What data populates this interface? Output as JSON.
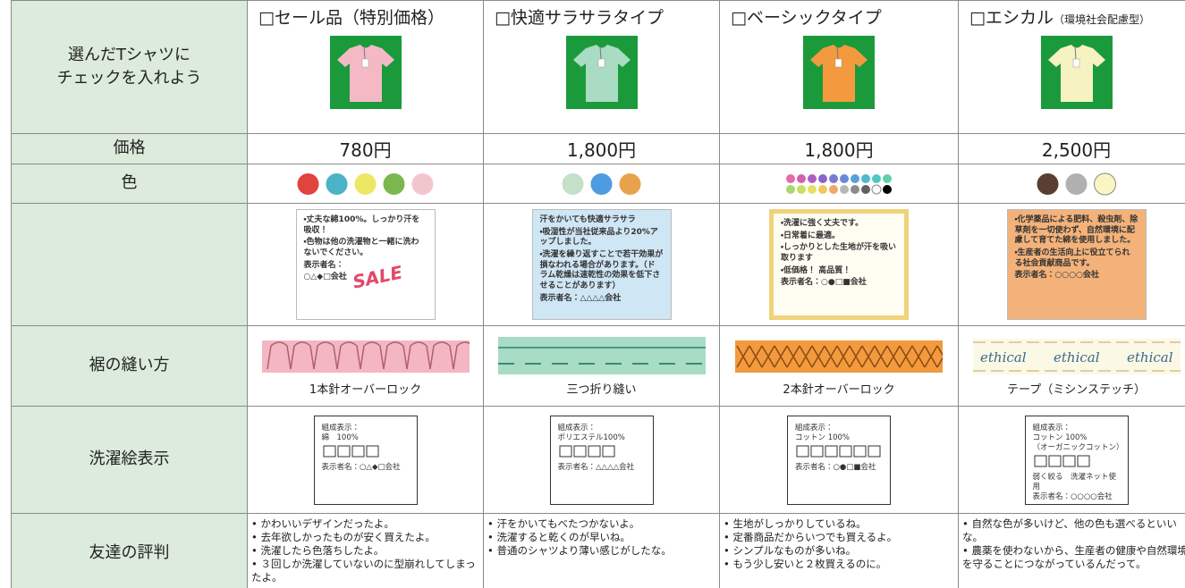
{
  "labels": {
    "select": "選んだTシャツに\nチェックを入れよう",
    "price": "価格",
    "color": "色",
    "hem": "裾の縫い方",
    "wash": "洗濯絵表示",
    "review": "友達の評判"
  },
  "products": [
    {
      "name": "□セール品（特別価格）",
      "shirt_color": "#f5b9c6",
      "price": "780円",
      "colors": [
        "#e0443f",
        "#4ab3c8",
        "#ece866",
        "#7ab84f",
        "#f3c6cc"
      ],
      "tag_color": "#ffffff",
      "tag": [
        "・丈夫な綿100%。しっかり汗を吸収！",
        "・色物は他の洗濯物と一緒に洗わないでください。",
        "表示者名：",
        "○△◆□会社"
      ],
      "stamp": "SALE",
      "hem": "1本針オーバーロック",
      "wash": [
        "組成表示：",
        "綿　100%",
        "表示者名：○△◆□会社"
      ],
      "review": [
        "• かわいいデザインだったよ。",
        "• 去年欲しかったものが安く買えたよ。",
        "• 洗濯したら色落ちしたよ。",
        "• ３回しか洗濯していないのに型崩れしてしまったよ。"
      ]
    },
    {
      "name": "□快適サラサラタイプ",
      "shirt_color": "#a9dcc2",
      "price": "1,800円",
      "colors": [
        "#c5e0c8",
        "#4f9be0",
        "#e8a24e"
      ],
      "tag_color": "#cfe6f5",
      "tag": [
        "汗をかいても快適サラサラ",
        "・吸湿性が当社従来品より20%アップしました。",
        "・洗濯を繰り返すことで若干効果が損なわれる場合があります。（ドラム乾燥は速乾性の効果を低下させることがあります）",
        "表示者名：△△△△会社"
      ],
      "hem": "三つ折り縫い",
      "wash": [
        "組成表示：",
        "ポリエステル100%",
        "表示者名：△△△△会社"
      ],
      "review": [
        "• 汗をかいてもべたつかないよ。",
        "• 洗濯すると乾くのが早いね。",
        "• 普通のシャツより薄い感じがしたな。"
      ]
    },
    {
      "name": "□ベーシックタイプ",
      "shirt_color": "#f39a3e",
      "price": "1,800円",
      "colors": [
        "#e86aa8",
        "#d062b0",
        "#b05fc0",
        "#8a64c8",
        "#7a7ad0",
        "#6a8ad8",
        "#5aa0d8",
        "#50b8d0",
        "#50c8c0",
        "#60d0a8",
        "#a8d870",
        "#c8e060",
        "#e8e060",
        "#f0c860",
        "#f0a868",
        "#b8b8b8",
        "#8c8c8c",
        "#606060",
        "#ffffff",
        "#000000"
      ],
      "tag_color": "#fffdf2",
      "tag": [
        "・洗濯に強く丈夫です。",
        "・日常着に最適。",
        "・しっかりとした生地が汗を吸い取ります",
        "・低価格！ 高品質！",
        "表示者名：○●□■会社"
      ],
      "hem": "2本針オーバーロック",
      "wash": [
        "組成表示：",
        "コットン 100%",
        "表示者名：○●□■会社"
      ],
      "review": [
        "• 生地がしっかりしているね。",
        "• 定番商品だからいつでも買えるよ。",
        "• シンプルなものが多いね。",
        "• もう少し安いと２枚買えるのに。"
      ]
    },
    {
      "name": "□エシカル",
      "name_note": "（環境社会配慮型）",
      "shirt_color": "#f7f2c2",
      "price": "2,500円",
      "colors": [
        "#5a3e33",
        "#b0b0b0",
        "#faf5c4"
      ],
      "tag_color": "#f3b27a",
      "tag": [
        "・化学薬品による肥料、殺虫剤、除草剤を一切使わず、自然環境に配慮して育てた綿を使用しました。",
        "・生産者の生活向上に役立てられる社会貢献商品です。",
        "表示者名：○○○○会社"
      ],
      "hem": "テープ（ミシンステッチ）",
      "tape_text": [
        "ethical",
        "ethical",
        "ethical"
      ],
      "wash": [
        "組成表示：",
        "コットン 100%",
        "（オーガニックコットン）",
        "弱く絞る　洗濯ネット使用",
        "表示者名：○○○○会社"
      ],
      "review": [
        "• 自然な色が多いけど、他の色も選べるといいな。",
        "• 農薬を使わないから、生産者の健康や自然環境を守ることにつながっているんだって。"
      ]
    }
  ]
}
